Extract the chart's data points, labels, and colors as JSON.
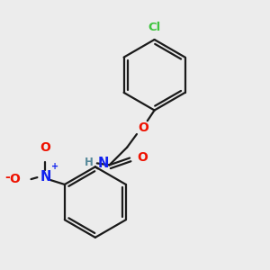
{
  "background_color": "#ececec",
  "bond_color": "#1a1a1a",
  "cl_color": "#3fc43f",
  "o_color": "#ee1100",
  "n_color": "#1122ee",
  "h_color": "#558899",
  "line_width": 1.6,
  "dbo": 0.04,
  "figsize": [
    3.0,
    3.0
  ],
  "dpi": 100,
  "xlim": [
    0.0,
    3.0
  ],
  "ylim": [
    0.0,
    3.0
  ]
}
